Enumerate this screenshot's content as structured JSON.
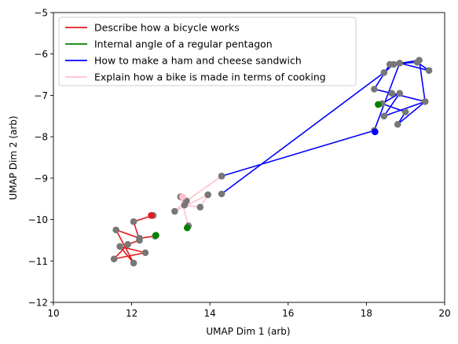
{
  "chart_data": {
    "type": "scatter",
    "xlabel": "UMAP Dim 1 (arb)",
    "ylabel": "UMAP Dim 2 (arb)",
    "xlim": [
      10,
      20
    ],
    "ylim": [
      -12,
      -5
    ],
    "xticks": [
      "10",
      "12",
      "14",
      "16",
      "18",
      "20"
    ],
    "yticks": [
      "−5",
      "−6",
      "−7",
      "−8",
      "−9",
      "−10",
      "−11",
      "−12"
    ],
    "grid": false,
    "legend_position": "upper-left",
    "point_color": "#777777",
    "series": [
      {
        "name": "Describe how a bicycle works",
        "color": "#e41a1c",
        "x": [
          12.55,
          12.05,
          12.2,
          11.9,
          11.55,
          12.35,
          11.7,
          12.05,
          11.6,
          12.2,
          12.6
        ],
        "y": [
          -9.9,
          -10.05,
          -10.5,
          -10.6,
          -10.95,
          -10.8,
          -10.65,
          -11.05,
          -10.25,
          -10.45,
          -10.4
        ],
        "end": {
          "x": 12.5,
          "y": -9.9
        }
      },
      {
        "name": "Internal angle of a regular pentagon",
        "color": "#008000",
        "x": [],
        "y": [],
        "end": {
          "x": 12.62,
          "y": -10.38
        }
      },
      {
        "name": "How to make a ham and cheese sandwich",
        "color": "#0000ff",
        "x": [
          14.3,
          18.45,
          18.7,
          19.35,
          19.5,
          18.45,
          18.85,
          18.4,
          19.0,
          18.8,
          19.5,
          18.65,
          18.2,
          18.6,
          19.3,
          19.6,
          18.85,
          18.2,
          14.3
        ],
        "y": [
          -9.38,
          -6.45,
          -6.25,
          -6.15,
          -7.15,
          -7.5,
          -6.95,
          -7.2,
          -7.4,
          -7.7,
          -7.15,
          -6.95,
          -6.85,
          -6.25,
          -6.2,
          -6.4,
          -6.22,
          -7.85,
          -8.95
        ],
        "end": {
          "x": 18.22,
          "y": -7.88
        }
      },
      {
        "name": "Explain how a bike is made in terms of cooking",
        "color": "#ffc0cb",
        "x": [
          14.3,
          13.4,
          13.1,
          13.95,
          13.75,
          13.35,
          13.25,
          13.45
        ],
        "y": [
          -8.95,
          -9.55,
          -9.8,
          -9.4,
          -9.7,
          -9.65,
          -9.45,
          -10.15
        ],
        "end": {
          "x": 13.3,
          "y": -9.45
        }
      }
    ],
    "extra_end_markers": [
      {
        "color": "#008000",
        "x": 18.3,
        "y": -7.22
      },
      {
        "color": "#008000",
        "x": 13.42,
        "y": -10.2
      }
    ]
  }
}
